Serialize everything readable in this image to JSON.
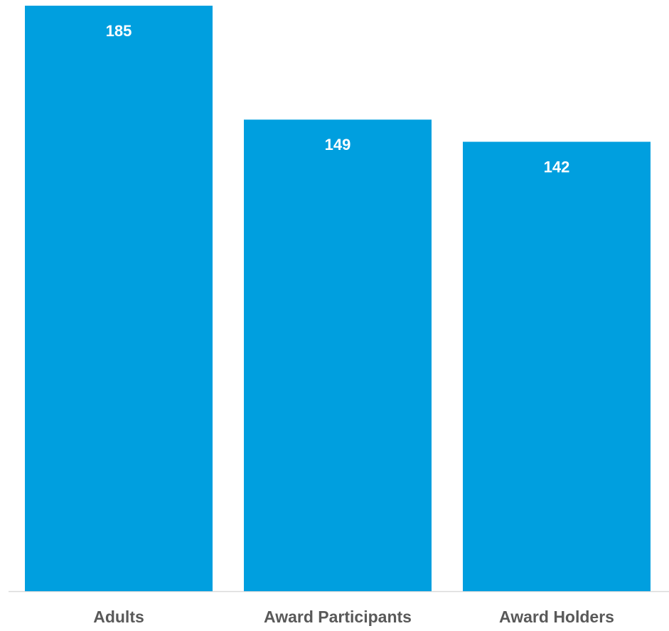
{
  "chart_data": {
    "type": "bar",
    "categories": [
      "Adults",
      "Award Participants",
      "Award Holders"
    ],
    "values": [
      185,
      149,
      142
    ],
    "color": "#009fdf"
  }
}
